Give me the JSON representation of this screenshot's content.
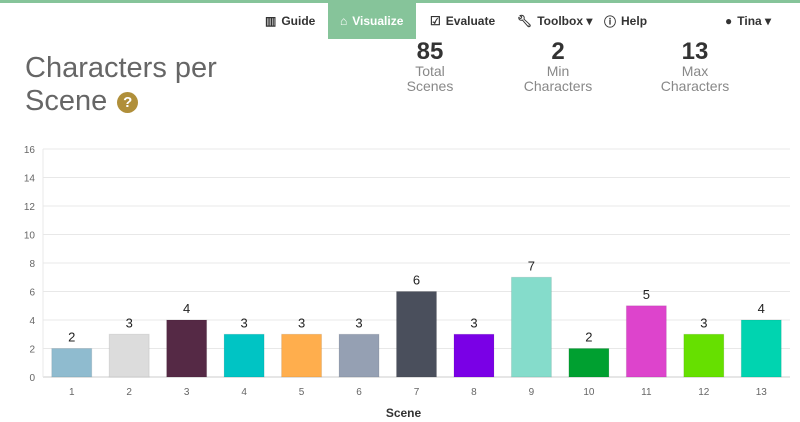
{
  "nav": {
    "guide": "Guide",
    "visualize": "Visualize",
    "evaluate": "Evaluate",
    "toolbox": "Toolbox",
    "help": "Help",
    "user": "Tina"
  },
  "title": "Characters per Scene",
  "stats": [
    {
      "value": "85",
      "label1": "Total",
      "label2": "Scenes"
    },
    {
      "value": "2",
      "label1": "Min",
      "label2": "Characters"
    },
    {
      "value": "13",
      "label1": "Max",
      "label2": "Characters"
    }
  ],
  "chart_data": {
    "type": "bar",
    "title": "",
    "xlabel": "Scene",
    "ylabel": "",
    "ylim": [
      0,
      16
    ],
    "yticks": [
      0,
      2,
      4,
      6,
      8,
      10,
      12,
      14,
      16
    ],
    "categories": [
      "1",
      "2",
      "3",
      "4",
      "5",
      "6",
      "7",
      "8",
      "9",
      "10",
      "11",
      "12",
      "13"
    ],
    "values": [
      2,
      3,
      4,
      3,
      3,
      3,
      6,
      3,
      7,
      2,
      5,
      3,
      4
    ],
    "colors": [
      "#8fbbcf",
      "#dcdcdc",
      "#552945",
      "#00c4c4",
      "#ffae4d",
      "#95a0b3",
      "#4a4f5c",
      "#7a00e6",
      "#85dccb",
      "#00a030",
      "#dd44cc",
      "#66e000",
      "#00d4b0"
    ],
    "grid": true
  }
}
